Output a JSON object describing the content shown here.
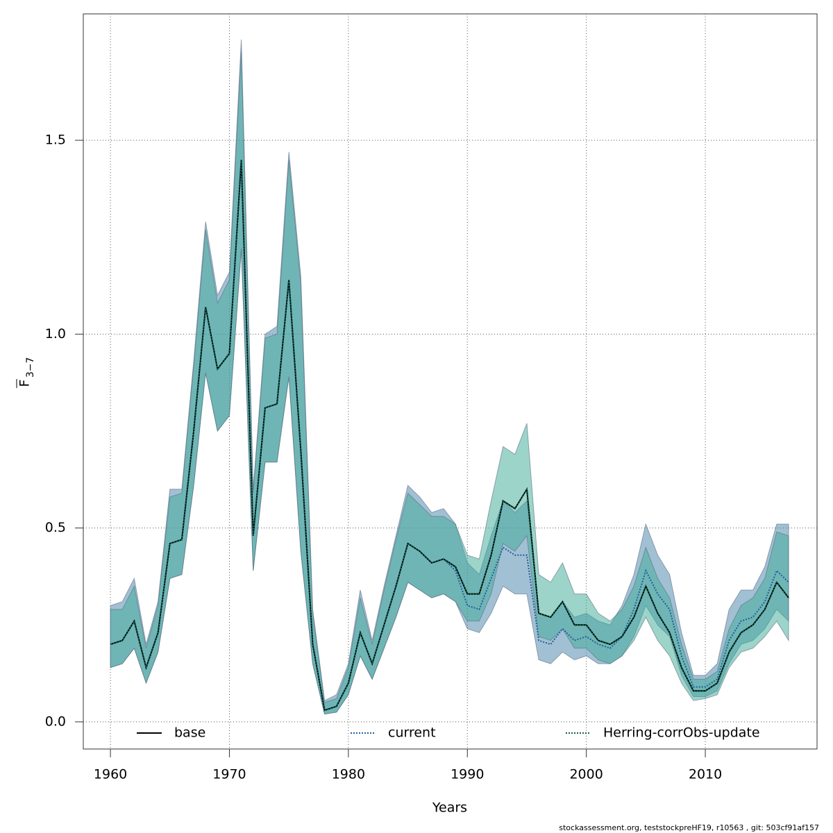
{
  "chart_data": {
    "type": "line",
    "xlabel": "Years",
    "ylabel": {
      "main": "F",
      "sub": "3−7"
    },
    "footer": "stockassessment.org, teststockpreHF19, r10563 , git: 503cf91af157",
    "xlim": [
      1957.72,
      2019.39
    ],
    "ylim": [
      -0.07,
      1.826
    ],
    "xticks": [
      1960,
      1970,
      1980,
      1990,
      2000,
      2010
    ],
    "yticks": [
      {
        "value": 0,
        "label": "0.0"
      },
      0.5,
      {
        "value": 1,
        "label": "1.0"
      },
      1.5
    ],
    "grid": true,
    "legend": "bottom",
    "x": [
      1960,
      1961,
      1962,
      1963,
      1964,
      1965,
      1966,
      1967,
      1968,
      1969,
      1970,
      1971,
      1972,
      1973,
      1974,
      1975,
      1976,
      1977,
      1978,
      1979,
      1980,
      1981,
      1982,
      1983,
      1984,
      1985,
      1986,
      1987,
      1988,
      1989,
      1990,
      1991,
      1992,
      1993,
      1994,
      1995,
      1996,
      1997,
      1998,
      1999,
      2000,
      2001,
      2002,
      2003,
      2004,
      2005,
      2006,
      2007,
      2008,
      2009,
      2010,
      2011,
      2012,
      2013,
      2014,
      2015,
      2016,
      2017
    ],
    "series": [
      {
        "name": "base",
        "color": "#000000",
        "dash": "solid",
        "values": [
          0.2,
          0.21,
          0.26,
          0.14,
          0.23,
          0.46,
          0.47,
          0.75,
          1.07,
          0.91,
          0.95,
          1.45,
          0.48,
          0.81,
          0.82,
          1.14,
          0.7,
          0.2,
          0.03,
          0.04,
          0.1,
          0.23,
          0.15,
          0.25,
          0.35,
          0.46,
          0.44,
          0.41,
          0.42,
          0.4,
          0.33,
          0.33,
          0.43,
          0.57,
          0.55,
          0.6,
          0.28,
          0.27,
          0.31,
          0.25,
          0.25,
          0.21,
          0.2,
          0.22,
          0.27,
          0.35,
          0.28,
          0.23,
          0.14,
          0.08,
          0.08,
          0.1,
          0.18,
          0.23,
          0.25,
          0.29,
          0.36,
          0.32
        ]
      },
      {
        "name": "current",
        "color": "#1f5f9a",
        "dash": "dotted",
        "band_color": "rgba(70,130,170,0.5)",
        "values": [
          0.2,
          0.21,
          0.26,
          0.14,
          0.23,
          0.46,
          0.47,
          0.75,
          1.07,
          0.91,
          0.95,
          1.45,
          0.48,
          0.81,
          0.82,
          1.14,
          0.7,
          0.2,
          0.03,
          0.04,
          0.1,
          0.23,
          0.15,
          0.25,
          0.35,
          0.46,
          0.44,
          0.41,
          0.42,
          0.39,
          0.3,
          0.29,
          0.37,
          0.45,
          0.43,
          0.43,
          0.21,
          0.2,
          0.24,
          0.21,
          0.22,
          0.2,
          0.19,
          0.22,
          0.29,
          0.39,
          0.33,
          0.29,
          0.17,
          0.09,
          0.09,
          0.11,
          0.21,
          0.26,
          0.27,
          0.31,
          0.39,
          0.36
        ],
        "lower": [
          0.14,
          0.15,
          0.19,
          0.1,
          0.18,
          0.37,
          0.38,
          0.61,
          0.9,
          0.75,
          0.79,
          1.22,
          0.39,
          0.67,
          0.67,
          0.89,
          0.44,
          0.15,
          0.02,
          0.025,
          0.07,
          0.17,
          0.11,
          0.19,
          0.27,
          0.36,
          0.34,
          0.32,
          0.33,
          0.31,
          0.24,
          0.23,
          0.28,
          0.35,
          0.33,
          0.33,
          0.16,
          0.15,
          0.18,
          0.16,
          0.17,
          0.15,
          0.15,
          0.17,
          0.22,
          0.3,
          0.25,
          0.22,
          0.12,
          0.065,
          0.065,
          0.08,
          0.15,
          0.2,
          0.21,
          0.24,
          0.29,
          0.26
        ],
        "upper": [
          0.3,
          0.31,
          0.37,
          0.2,
          0.31,
          0.6,
          0.6,
          0.93,
          1.29,
          1.1,
          1.16,
          1.76,
          0.6,
          1.0,
          1.02,
          1.47,
          1.15,
          0.29,
          0.055,
          0.07,
          0.15,
          0.34,
          0.21,
          0.35,
          0.48,
          0.61,
          0.58,
          0.54,
          0.55,
          0.51,
          0.41,
          0.38,
          0.48,
          0.57,
          0.54,
          0.57,
          0.28,
          0.27,
          0.31,
          0.27,
          0.28,
          0.26,
          0.25,
          0.3,
          0.38,
          0.51,
          0.43,
          0.38,
          0.23,
          0.12,
          0.12,
          0.15,
          0.29,
          0.34,
          0.34,
          0.4,
          0.51,
          0.51
        ]
      },
      {
        "name": "Herring-corrObs-update",
        "color": "#145c4c",
        "dash": "dotted",
        "band_color": "rgba(60,170,150,0.5)",
        "values": [
          0.2,
          0.21,
          0.26,
          0.14,
          0.23,
          0.46,
          0.47,
          0.75,
          1.07,
          0.91,
          0.95,
          1.45,
          0.48,
          0.81,
          0.82,
          1.14,
          0.7,
          0.2,
          0.03,
          0.04,
          0.1,
          0.23,
          0.15,
          0.25,
          0.35,
          0.46,
          0.44,
          0.41,
          0.42,
          0.4,
          0.33,
          0.33,
          0.43,
          0.57,
          0.55,
          0.6,
          0.28,
          0.27,
          0.31,
          0.25,
          0.25,
          0.21,
          0.2,
          0.22,
          0.27,
          0.35,
          0.28,
          0.23,
          0.14,
          0.08,
          0.08,
          0.1,
          0.18,
          0.23,
          0.25,
          0.29,
          0.36,
          0.32
        ],
        "lower": [
          0.14,
          0.15,
          0.19,
          0.1,
          0.18,
          0.37,
          0.38,
          0.61,
          0.9,
          0.75,
          0.79,
          1.22,
          0.39,
          0.67,
          0.67,
          0.89,
          0.44,
          0.15,
          0.02,
          0.025,
          0.07,
          0.17,
          0.11,
          0.19,
          0.27,
          0.36,
          0.34,
          0.32,
          0.33,
          0.31,
          0.26,
          0.26,
          0.33,
          0.46,
          0.44,
          0.48,
          0.22,
          0.21,
          0.24,
          0.19,
          0.19,
          0.16,
          0.15,
          0.17,
          0.21,
          0.27,
          0.21,
          0.17,
          0.1,
          0.055,
          0.06,
          0.07,
          0.14,
          0.18,
          0.19,
          0.22,
          0.26,
          0.21
        ],
        "upper": [
          0.29,
          0.29,
          0.35,
          0.19,
          0.3,
          0.58,
          0.59,
          0.92,
          1.27,
          1.08,
          1.14,
          1.73,
          0.59,
          0.99,
          1.0,
          1.45,
          1.13,
          0.28,
          0.05,
          0.06,
          0.14,
          0.32,
          0.2,
          0.34,
          0.47,
          0.59,
          0.56,
          0.53,
          0.53,
          0.51,
          0.43,
          0.42,
          0.57,
          0.71,
          0.69,
          0.77,
          0.38,
          0.36,
          0.41,
          0.33,
          0.33,
          0.28,
          0.26,
          0.29,
          0.35,
          0.45,
          0.37,
          0.32,
          0.2,
          0.11,
          0.11,
          0.13,
          0.24,
          0.3,
          0.32,
          0.37,
          0.49,
          0.48
        ]
      }
    ]
  }
}
